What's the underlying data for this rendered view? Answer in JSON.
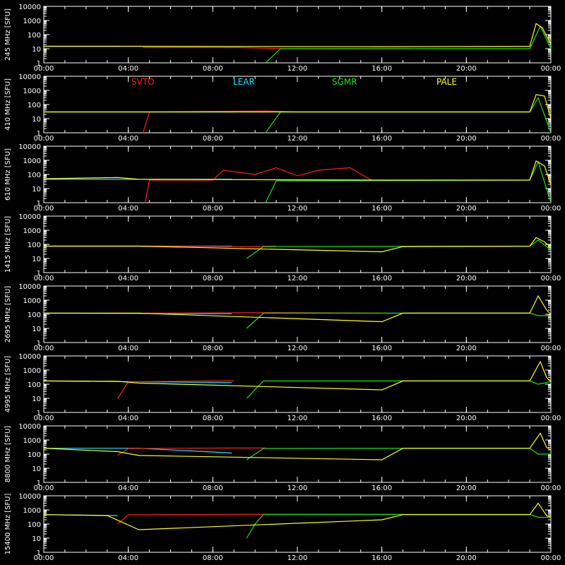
{
  "chart_data": {
    "type": "line",
    "y_scale": "log",
    "ylim": [
      1,
      10000
    ],
    "ytick_labels": [
      "1",
      "10",
      "100",
      "1000",
      "10000"
    ],
    "x_range_hours": [
      0,
      24
    ],
    "xtick_labels": [
      "00:00",
      "04:00",
      "08:00",
      "12:00",
      "16:00",
      "20:00",
      "00:00"
    ],
    "legend": [
      {
        "name": "SVTO",
        "color": "#ff2020"
      },
      {
        "name": "LEAR",
        "color": "#20e0ff"
      },
      {
        "name": "SGMR",
        "color": "#20e020"
      },
      {
        "name": "PALE",
        "color": "#ffff20"
      }
    ],
    "panels": [
      {
        "ylabel": "245 MHz [SFU]",
        "baseline": 13,
        "series": [
          {
            "name": "LEAR",
            "segments": [
              [
                0,
                15
              ],
              [
                3.6,
                15
              ]
            ]
          },
          {
            "name": "SVTO",
            "segments": [
              [
                4.7,
                12
              ],
              [
                9.2,
                12
              ],
              [
                11.5,
                10
              ],
              [
                17.3,
                10
              ]
            ]
          },
          {
            "name": "SGMR",
            "segments": [
              [
                10.5,
                1
              ],
              [
                11.2,
                10
              ],
              [
                17.6,
                10
              ],
              [
                23.0,
                10
              ],
              [
                23.5,
                400
              ],
              [
                24,
                10
              ]
            ]
          },
          {
            "name": "PALE",
            "segments": [
              [
                0,
                15
              ],
              [
                4.5,
                15
              ],
              [
                16.0,
                14
              ],
              [
                23.0,
                15
              ],
              [
                23.3,
                600
              ],
              [
                23.6,
                300
              ],
              [
                24,
                20
              ]
            ]
          }
        ]
      },
      {
        "ylabel": "410 MHz [SFU]",
        "baseline": 30,
        "series": [
          {
            "name": "LEAR",
            "segments": [
              [
                0,
                30
              ],
              [
                9.0,
                30
              ]
            ]
          },
          {
            "name": "SVTO",
            "segments": [
              [
                4.7,
                1
              ],
              [
                5.0,
                30
              ],
              [
                10.5,
                35
              ],
              [
                12.0,
                30
              ]
            ]
          },
          {
            "name": "SGMR",
            "segments": [
              [
                10.5,
                1
              ],
              [
                11.2,
                30
              ],
              [
                23.0,
                30
              ],
              [
                23.4,
                300
              ],
              [
                24,
                1
              ]
            ]
          },
          {
            "name": "PALE",
            "segments": [
              [
                0,
                30
              ],
              [
                4.5,
                30
              ],
              [
                16.0,
                30
              ],
              [
                23.0,
                30
              ],
              [
                23.3,
                500
              ],
              [
                23.7,
                400
              ],
              [
                24,
                10
              ]
            ]
          }
        ]
      },
      {
        "ylabel": "610 MHz [SFU]",
        "baseline": 40,
        "series": [
          {
            "name": "LEAR",
            "segments": [
              [
                0,
                45
              ],
              [
                8.9,
                45
              ]
            ]
          },
          {
            "name": "SVTO",
            "segments": [
              [
                4.8,
                1
              ],
              [
                5.0,
                40
              ],
              [
                8.0,
                40
              ],
              [
                8.5,
                200
              ],
              [
                10.0,
                100
              ],
              [
                11.0,
                300
              ],
              [
                12.0,
                80
              ],
              [
                13.0,
                200
              ],
              [
                14.5,
                300
              ],
              [
                15.5,
                40
              ]
            ]
          },
          {
            "name": "SGMR",
            "segments": [
              [
                10.5,
                1
              ],
              [
                11.0,
                35
              ],
              [
                23.0,
                40
              ],
              [
                23.4,
                800
              ],
              [
                24,
                1
              ]
            ]
          },
          {
            "name": "PALE",
            "segments": [
              [
                0,
                50
              ],
              [
                3.5,
                60
              ],
              [
                4.5,
                45
              ],
              [
                16.0,
                40
              ],
              [
                23.0,
                40
              ],
              [
                23.3,
                900
              ],
              [
                23.7,
                400
              ],
              [
                24,
                20
              ]
            ]
          }
        ]
      },
      {
        "ylabel": "1415 MHz [SFU]",
        "baseline": 75,
        "series": [
          {
            "name": "LEAR",
            "segments": [
              [
                0,
                75
              ],
              [
                8.9,
                75
              ]
            ]
          },
          {
            "name": "SVTO",
            "segments": [
              [
                4.8,
                75
              ],
              [
                9.5,
                70
              ],
              [
                11.0,
                75
              ]
            ]
          },
          {
            "name": "SGMR",
            "segments": [
              [
                9.6,
                10
              ],
              [
                10.4,
                70
              ],
              [
                23.0,
                75
              ],
              [
                23.4,
                200
              ],
              [
                24,
                40
              ]
            ]
          },
          {
            "name": "PALE",
            "segments": [
              [
                0,
                75
              ],
              [
                4.5,
                75
              ],
              [
                16.0,
                30
              ],
              [
                17.0,
                70
              ],
              [
                23.0,
                75
              ],
              [
                23.3,
                300
              ],
              [
                23.7,
                150
              ],
              [
                24,
                60
              ]
            ]
          }
        ]
      },
      {
        "ylabel": "2695 MHz [SFU]",
        "baseline": 120,
        "series": [
          {
            "name": "LEAR",
            "segments": [
              [
                0,
                120
              ],
              [
                8.9,
                110
              ]
            ]
          },
          {
            "name": "SVTO",
            "segments": [
              [
                4.8,
                120
              ],
              [
                11.0,
                130
              ],
              [
                16.0,
                120
              ]
            ]
          },
          {
            "name": "SGMR",
            "segments": [
              [
                9.6,
                10
              ],
              [
                10.4,
                120
              ],
              [
                23.0,
                120
              ],
              [
                23.4,
                80
              ],
              [
                24,
                80
              ]
            ]
          },
          {
            "name": "PALE",
            "segments": [
              [
                0,
                120
              ],
              [
                4.5,
                120
              ],
              [
                16.0,
                30
              ],
              [
                17.0,
                120
              ],
              [
                23.0,
                120
              ],
              [
                23.4,
                2000
              ],
              [
                23.8,
                200
              ],
              [
                24,
                100
              ]
            ]
          }
        ]
      },
      {
        "ylabel": "4995 MHz [SFU]",
        "baseline": 170,
        "series": [
          {
            "name": "LEAR",
            "segments": [
              [
                0,
                170
              ],
              [
                8.9,
                130
              ]
            ]
          },
          {
            "name": "SVTO",
            "segments": [
              [
                3.5,
                10
              ],
              [
                4.0,
                150
              ],
              [
                8.0,
                170
              ],
              [
                9.0,
                170
              ]
            ]
          },
          {
            "name": "SGMR",
            "segments": [
              [
                9.6,
                10
              ],
              [
                10.4,
                170
              ],
              [
                23.0,
                170
              ],
              [
                23.4,
                100
              ],
              [
                24,
                150
              ]
            ]
          },
          {
            "name": "PALE",
            "segments": [
              [
                0,
                170
              ],
              [
                3.5,
                160
              ],
              [
                4.5,
                120
              ],
              [
                16.0,
                40
              ],
              [
                17.0,
                170
              ],
              [
                23.0,
                170
              ],
              [
                23.5,
                4000
              ],
              [
                23.8,
                300
              ],
              [
                24,
                150
              ]
            ]
          }
        ]
      },
      {
        "ylabel": "8800 MHz [SFU]",
        "baseline": 260,
        "series": [
          {
            "name": "LEAR",
            "segments": [
              [
                0,
                260
              ],
              [
                4.5,
                260
              ],
              [
                8.9,
                120
              ]
            ]
          },
          {
            "name": "SVTO",
            "segments": [
              [
                3.5,
                80
              ],
              [
                4.0,
                250
              ],
              [
                9.0,
                270
              ],
              [
                10.5,
                270
              ]
            ]
          },
          {
            "name": "SGMR",
            "segments": [
              [
                9.6,
                40
              ],
              [
                10.4,
                250
              ],
              [
                23.0,
                260
              ],
              [
                23.4,
                100
              ],
              [
                24,
                100
              ]
            ]
          },
          {
            "name": "PALE",
            "segments": [
              [
                0,
                260
              ],
              [
                3.5,
                150
              ],
              [
                4.5,
                80
              ],
              [
                16.0,
                40
              ],
              [
                17.0,
                260
              ],
              [
                23.0,
                260
              ],
              [
                23.5,
                3000
              ],
              [
                23.8,
                300
              ],
              [
                24,
                200
              ]
            ]
          }
        ]
      },
      {
        "ylabel": "15400 MHz [SFU]",
        "baseline": 460,
        "series": [
          {
            "name": "LEAR",
            "segments": [
              [
                0,
                460
              ],
              [
                3.5,
                400
              ]
            ]
          },
          {
            "name": "SVTO",
            "segments": [
              [
                3.5,
                100
              ],
              [
                4.0,
                450
              ],
              [
                9.0,
                480
              ],
              [
                17.0,
                480
              ]
            ]
          },
          {
            "name": "SGMR",
            "segments": [
              [
                9.6,
                10
              ],
              [
                10.0,
                100
              ],
              [
                10.4,
                480
              ],
              [
                23.0,
                480
              ],
              [
                23.4,
                300
              ],
              [
                24,
                300
              ]
            ]
          },
          {
            "name": "PALE",
            "segments": [
              [
                0,
                460
              ],
              [
                3.0,
                400
              ],
              [
                4.5,
                40
              ],
              [
                16.0,
                200
              ],
              [
                17.0,
                460
              ],
              [
                23.0,
                460
              ],
              [
                23.4,
                3000
              ],
              [
                23.8,
                400
              ],
              [
                24,
                300
              ]
            ]
          }
        ]
      }
    ]
  }
}
